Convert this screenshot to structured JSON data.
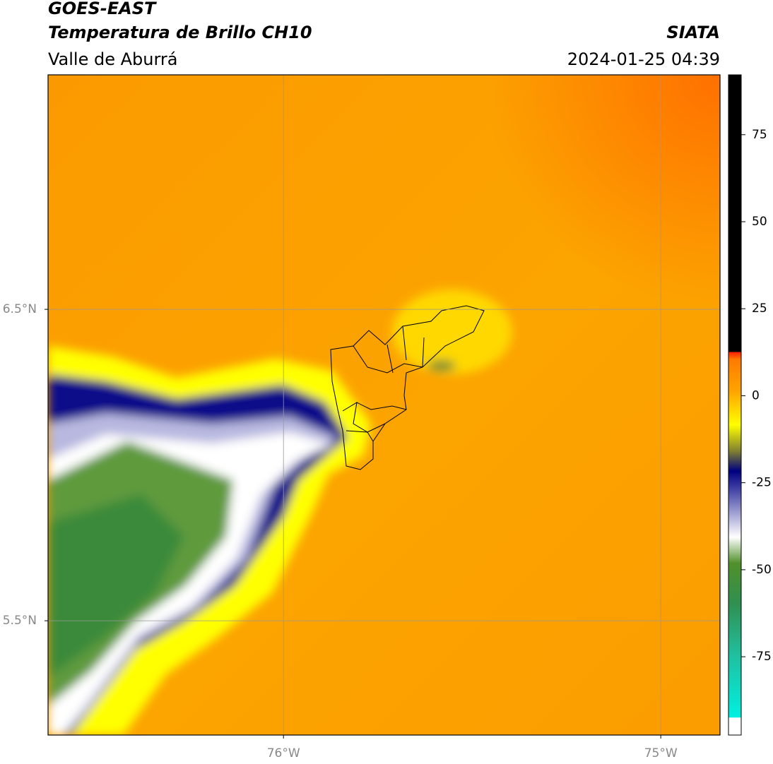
{
  "header": {
    "line1": "GOES-EAST",
    "line2": "Temperatura de Brillo CH10",
    "line3": "Valle de Aburrá",
    "source": "SIATA",
    "datetime": "2024-01-25 04:39"
  },
  "map": {
    "xlim": [
      -76.624,
      -74.843
    ],
    "ylim": [
      5.133,
      7.253
    ],
    "xticks": [
      {
        "value": -76,
        "label": "76°W"
      },
      {
        "value": -75,
        "label": "75°W"
      }
    ],
    "yticks": [
      {
        "value": 6.5,
        "label": "6.5°N"
      },
      {
        "value": 5.5,
        "label": "5.5°N"
      }
    ],
    "grid": true
  },
  "colorbar": {
    "lim": [
      -97.5,
      92.2
    ],
    "ticks": [
      75,
      50,
      25,
      0,
      -25,
      -50,
      -75
    ]
  }
}
